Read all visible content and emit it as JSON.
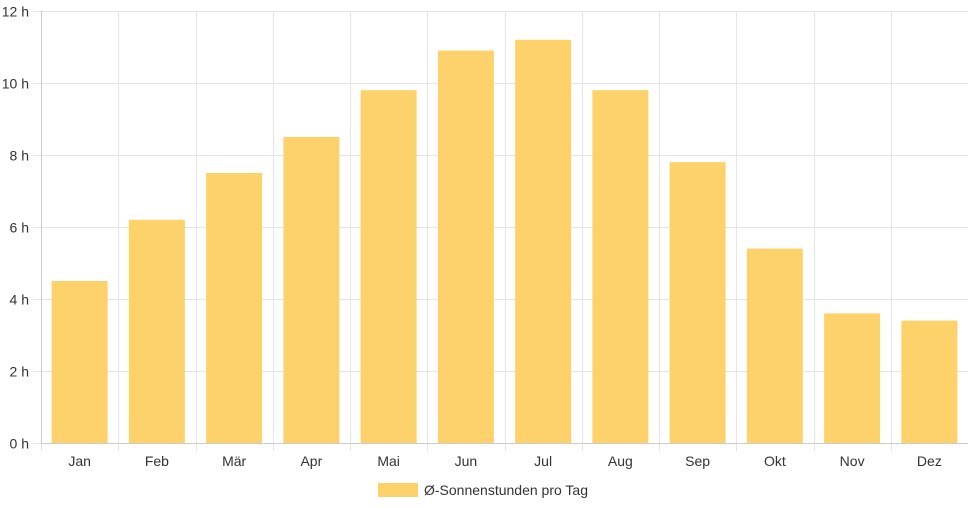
{
  "chart_data": {
    "type": "bar",
    "categories": [
      "Jan",
      "Feb",
      "Mär",
      "Apr",
      "Mai",
      "Jun",
      "Jul",
      "Aug",
      "Sep",
      "Okt",
      "Nov",
      "Dez"
    ],
    "series": [
      {
        "name": "Ø-Sonnenstunden pro Tag",
        "values": [
          4.5,
          6.2,
          7.5,
          8.5,
          9.8,
          10.9,
          11.2,
          9.8,
          7.8,
          5.4,
          3.6,
          3.4
        ]
      }
    ],
    "y_ticks": [
      "0 h",
      "2 h",
      "4 h",
      "6 h",
      "8 h",
      "10 h",
      "12 h"
    ],
    "ylim": [
      0,
      12
    ],
    "y_step": 2,
    "grid": true,
    "legend_position": "bottom",
    "bar_color": "#fdd26a",
    "grid_color": "#e5e5e5",
    "axis_color": "#cccccc",
    "text_color": "#333333"
  }
}
